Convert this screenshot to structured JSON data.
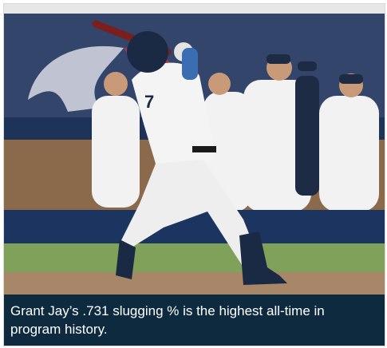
{
  "caption": "Grant Jay’s .731 slugging % is the highest all-time in program history."
}
